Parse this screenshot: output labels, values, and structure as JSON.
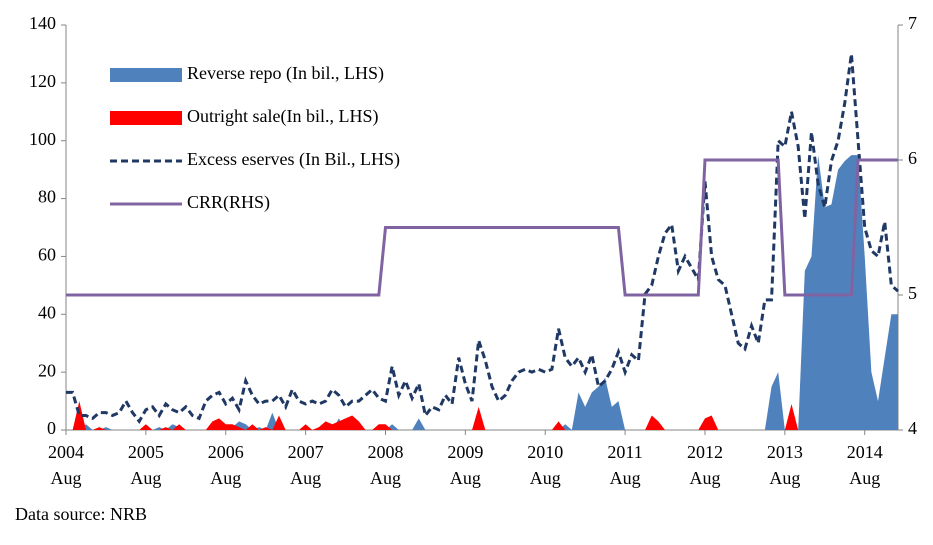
{
  "chart_data": {
    "type": "combo",
    "source": "Data source: NRB",
    "categories": [
      "2004\nAug",
      null,
      null,
      null,
      null,
      null,
      null,
      null,
      null,
      null,
      null,
      null,
      "2005\nAug",
      null,
      null,
      null,
      null,
      null,
      null,
      null,
      null,
      null,
      null,
      null,
      "2006\nAug",
      null,
      null,
      null,
      null,
      null,
      null,
      null,
      null,
      null,
      null,
      null,
      "2007\nAug",
      null,
      null,
      null,
      null,
      null,
      null,
      null,
      null,
      null,
      null,
      null,
      "2008\nAug",
      null,
      null,
      null,
      null,
      null,
      null,
      null,
      null,
      null,
      null,
      null,
      "2009\nAug",
      null,
      null,
      null,
      null,
      null,
      null,
      null,
      null,
      null,
      null,
      null,
      "2010\nAug",
      null,
      null,
      null,
      null,
      null,
      null,
      null,
      null,
      null,
      null,
      null,
      "2011\nAug",
      null,
      null,
      null,
      null,
      null,
      null,
      null,
      null,
      null,
      null,
      null,
      "2012\nAug",
      null,
      null,
      null,
      null,
      null,
      null,
      null,
      null,
      null,
      null,
      null,
      "2013\nAug",
      null,
      null,
      null,
      null,
      null,
      null,
      null,
      null,
      null,
      null,
      null,
      "2014\nAug",
      null,
      null,
      null,
      null,
      null
    ],
    "ylim": [
      0,
      140
    ],
    "yticks": [
      0,
      20,
      40,
      60,
      80,
      100,
      120,
      140
    ],
    "y2lim": [
      4,
      7
    ],
    "y2ticks": [
      4,
      5,
      6,
      7
    ],
    "series": [
      {
        "name": "Reverse repo (In bil., LHS)",
        "kind": "area",
        "color": "#4f81bd",
        "values": [
          0,
          0,
          0,
          2,
          0,
          0,
          1,
          0,
          0,
          0,
          0,
          0,
          0,
          0,
          1,
          0,
          2,
          1,
          0,
          0,
          0,
          0,
          0,
          0,
          0,
          1,
          3,
          2,
          0,
          1,
          0,
          6,
          0,
          0,
          0,
          0,
          0,
          0,
          0,
          0,
          0,
          4,
          0,
          0,
          0,
          0,
          0,
          0,
          0,
          2,
          0,
          0,
          0,
          4,
          0,
          0,
          0,
          0,
          0,
          0,
          0,
          0,
          0,
          0,
          0,
          0,
          0,
          0,
          0,
          0,
          0,
          0,
          0,
          0,
          0,
          2,
          0,
          13,
          8,
          13,
          15,
          18,
          8,
          10,
          0,
          0,
          0,
          0,
          0,
          0,
          0,
          0,
          0,
          0,
          0,
          0,
          0,
          0,
          0,
          0,
          0,
          0,
          0,
          0,
          0,
          0,
          15,
          20,
          0,
          0,
          0,
          55,
          60,
          95,
          77,
          78,
          90,
          93,
          95,
          95,
          60,
          20,
          10,
          25,
          40,
          40
        ]
      },
      {
        "name": "Outright sale(In bil., LHS)",
        "kind": "area",
        "color": "#ff0000",
        "values": [
          0,
          0,
          10,
          0,
          0,
          1,
          0,
          0,
          0,
          0,
          0,
          0,
          2,
          0,
          0,
          1,
          0,
          2,
          0,
          0,
          0,
          0,
          3,
          4,
          2,
          2,
          1,
          0,
          2,
          0,
          1,
          0,
          5,
          0,
          0,
          0,
          2,
          0,
          1,
          3,
          2,
          3,
          4,
          5,
          3,
          0,
          0,
          2,
          2,
          0,
          0,
          0,
          0,
          0,
          0,
          0,
          0,
          0,
          0,
          0,
          0,
          0,
          8,
          0,
          0,
          0,
          0,
          0,
          0,
          0,
          0,
          0,
          0,
          0,
          3,
          0,
          0,
          0,
          0,
          0,
          0,
          0,
          0,
          0,
          0,
          0,
          0,
          0,
          5,
          3,
          0,
          0,
          0,
          0,
          0,
          0,
          4,
          5,
          0,
          0,
          0,
          0,
          0,
          0,
          0,
          0,
          0,
          0,
          0,
          9,
          0,
          0,
          0,
          0,
          0,
          0,
          0,
          0,
          0,
          0,
          0,
          0,
          0,
          0,
          0,
          0
        ]
      },
      {
        "name": "Excess eserves (In Bil., LHS)",
        "kind": "dashed",
        "color": "#1f3864",
        "values": [
          13,
          13,
          5,
          5,
          4,
          6,
          6,
          5,
          6,
          10,
          6,
          3,
          7,
          8,
          5,
          9,
          7,
          6,
          8,
          5,
          4,
          10,
          12,
          13,
          9,
          11,
          7,
          17,
          12,
          9,
          10,
          10,
          12,
          8,
          14,
          10,
          9,
          10,
          9,
          10,
          14,
          12,
          8,
          10,
          10,
          12,
          14,
          11,
          10,
          22,
          12,
          17,
          11,
          16,
          5,
          8,
          7,
          12,
          9,
          25,
          16,
          10,
          31,
          24,
          15,
          10,
          12,
          17,
          20,
          21,
          20,
          21,
          20,
          21,
          35,
          25,
          22,
          25,
          20,
          26,
          15,
          17,
          21,
          27,
          20,
          26,
          24,
          47,
          50,
          60,
          68,
          71,
          55,
          60,
          56,
          52,
          86,
          60,
          52,
          50,
          40,
          30,
          28,
          36,
          30,
          45,
          45,
          100,
          98,
          110,
          98,
          73,
          103,
          85,
          77,
          93,
          100,
          113,
          130,
          100,
          70,
          62,
          60,
          72,
          50,
          48
        ]
      },
      {
        "name": "CRR(RHS)",
        "kind": "line",
        "axis": "y2",
        "color": "#8064a2",
        "values": [
          5,
          5,
          5,
          5,
          5,
          5,
          5,
          5,
          5,
          5,
          5,
          5,
          5,
          5,
          5,
          5,
          5,
          5,
          5,
          5,
          5,
          5,
          5,
          5,
          5,
          5,
          5,
          5,
          5,
          5,
          5,
          5,
          5,
          5,
          5,
          5,
          5,
          5,
          5,
          5,
          5,
          5,
          5,
          5,
          5,
          5,
          5,
          5,
          5.5,
          5.5,
          5.5,
          5.5,
          5.5,
          5.5,
          5.5,
          5.5,
          5.5,
          5.5,
          5.5,
          5.5,
          5.5,
          5.5,
          5.5,
          5.5,
          5.5,
          5.5,
          5.5,
          5.5,
          5.5,
          5.5,
          5.5,
          5.5,
          5.5,
          5.5,
          5.5,
          5.5,
          5.5,
          5.5,
          5.5,
          5.5,
          5.5,
          5.5,
          5.5,
          5.5,
          5,
          5,
          5,
          5,
          5,
          5,
          5,
          5,
          5,
          5,
          5,
          5,
          6,
          6,
          6,
          6,
          6,
          6,
          6,
          6,
          6,
          6,
          6,
          6,
          5,
          5,
          5,
          5,
          5,
          5,
          5,
          5,
          5,
          5,
          5,
          6,
          6,
          6,
          6,
          6,
          6,
          6
        ]
      }
    ]
  }
}
